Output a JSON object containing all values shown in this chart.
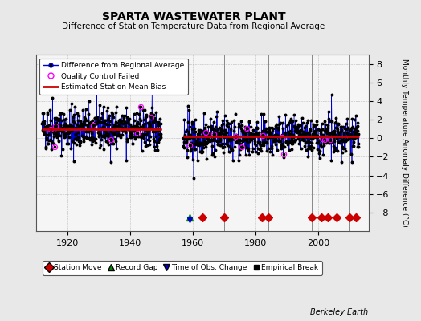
{
  "title": "SPARTA WASTEWATER PLANT",
  "subtitle": "Difference of Station Temperature Data from Regional Average",
  "ylabel": "Monthly Temperature Anomaly Difference (°C)",
  "xlabel_credit": "Berkeley Earth",
  "background_color": "#e8e8e8",
  "plot_bg_color": "#f5f5f5",
  "ylim": [
    -10,
    9
  ],
  "yticks": [
    -8,
    -6,
    -4,
    -2,
    0,
    2,
    4,
    6,
    8
  ],
  "segment1_start": 1912,
  "segment1_end": 1950,
  "segment2_start": 1957,
  "segment2_end": 2013,
  "bias1": 1.0,
  "bias2": 0.15,
  "seed": 42,
  "station_moves": [
    1963,
    1970,
    1982,
    1984,
    1998,
    2001,
    2003,
    2006,
    2010,
    2012
  ],
  "record_gaps": [
    1959
  ],
  "obs_changes": [
    1959
  ],
  "vertical_lines": [
    1959,
    1970,
    1984,
    1998,
    2006,
    2010
  ],
  "line_color": "#0000cc",
  "marker_color": "#000000",
  "bias_color": "#cc0000",
  "qc_color": "#ff00ff",
  "station_move_color": "#cc0000",
  "record_gap_color": "#008800",
  "obs_change_color": "#0000cc",
  "emp_break_color": "#000000",
  "xlim_left": 1910,
  "xlim_right": 2016,
  "xticks": [
    1920,
    1940,
    1960,
    1980,
    2000
  ]
}
